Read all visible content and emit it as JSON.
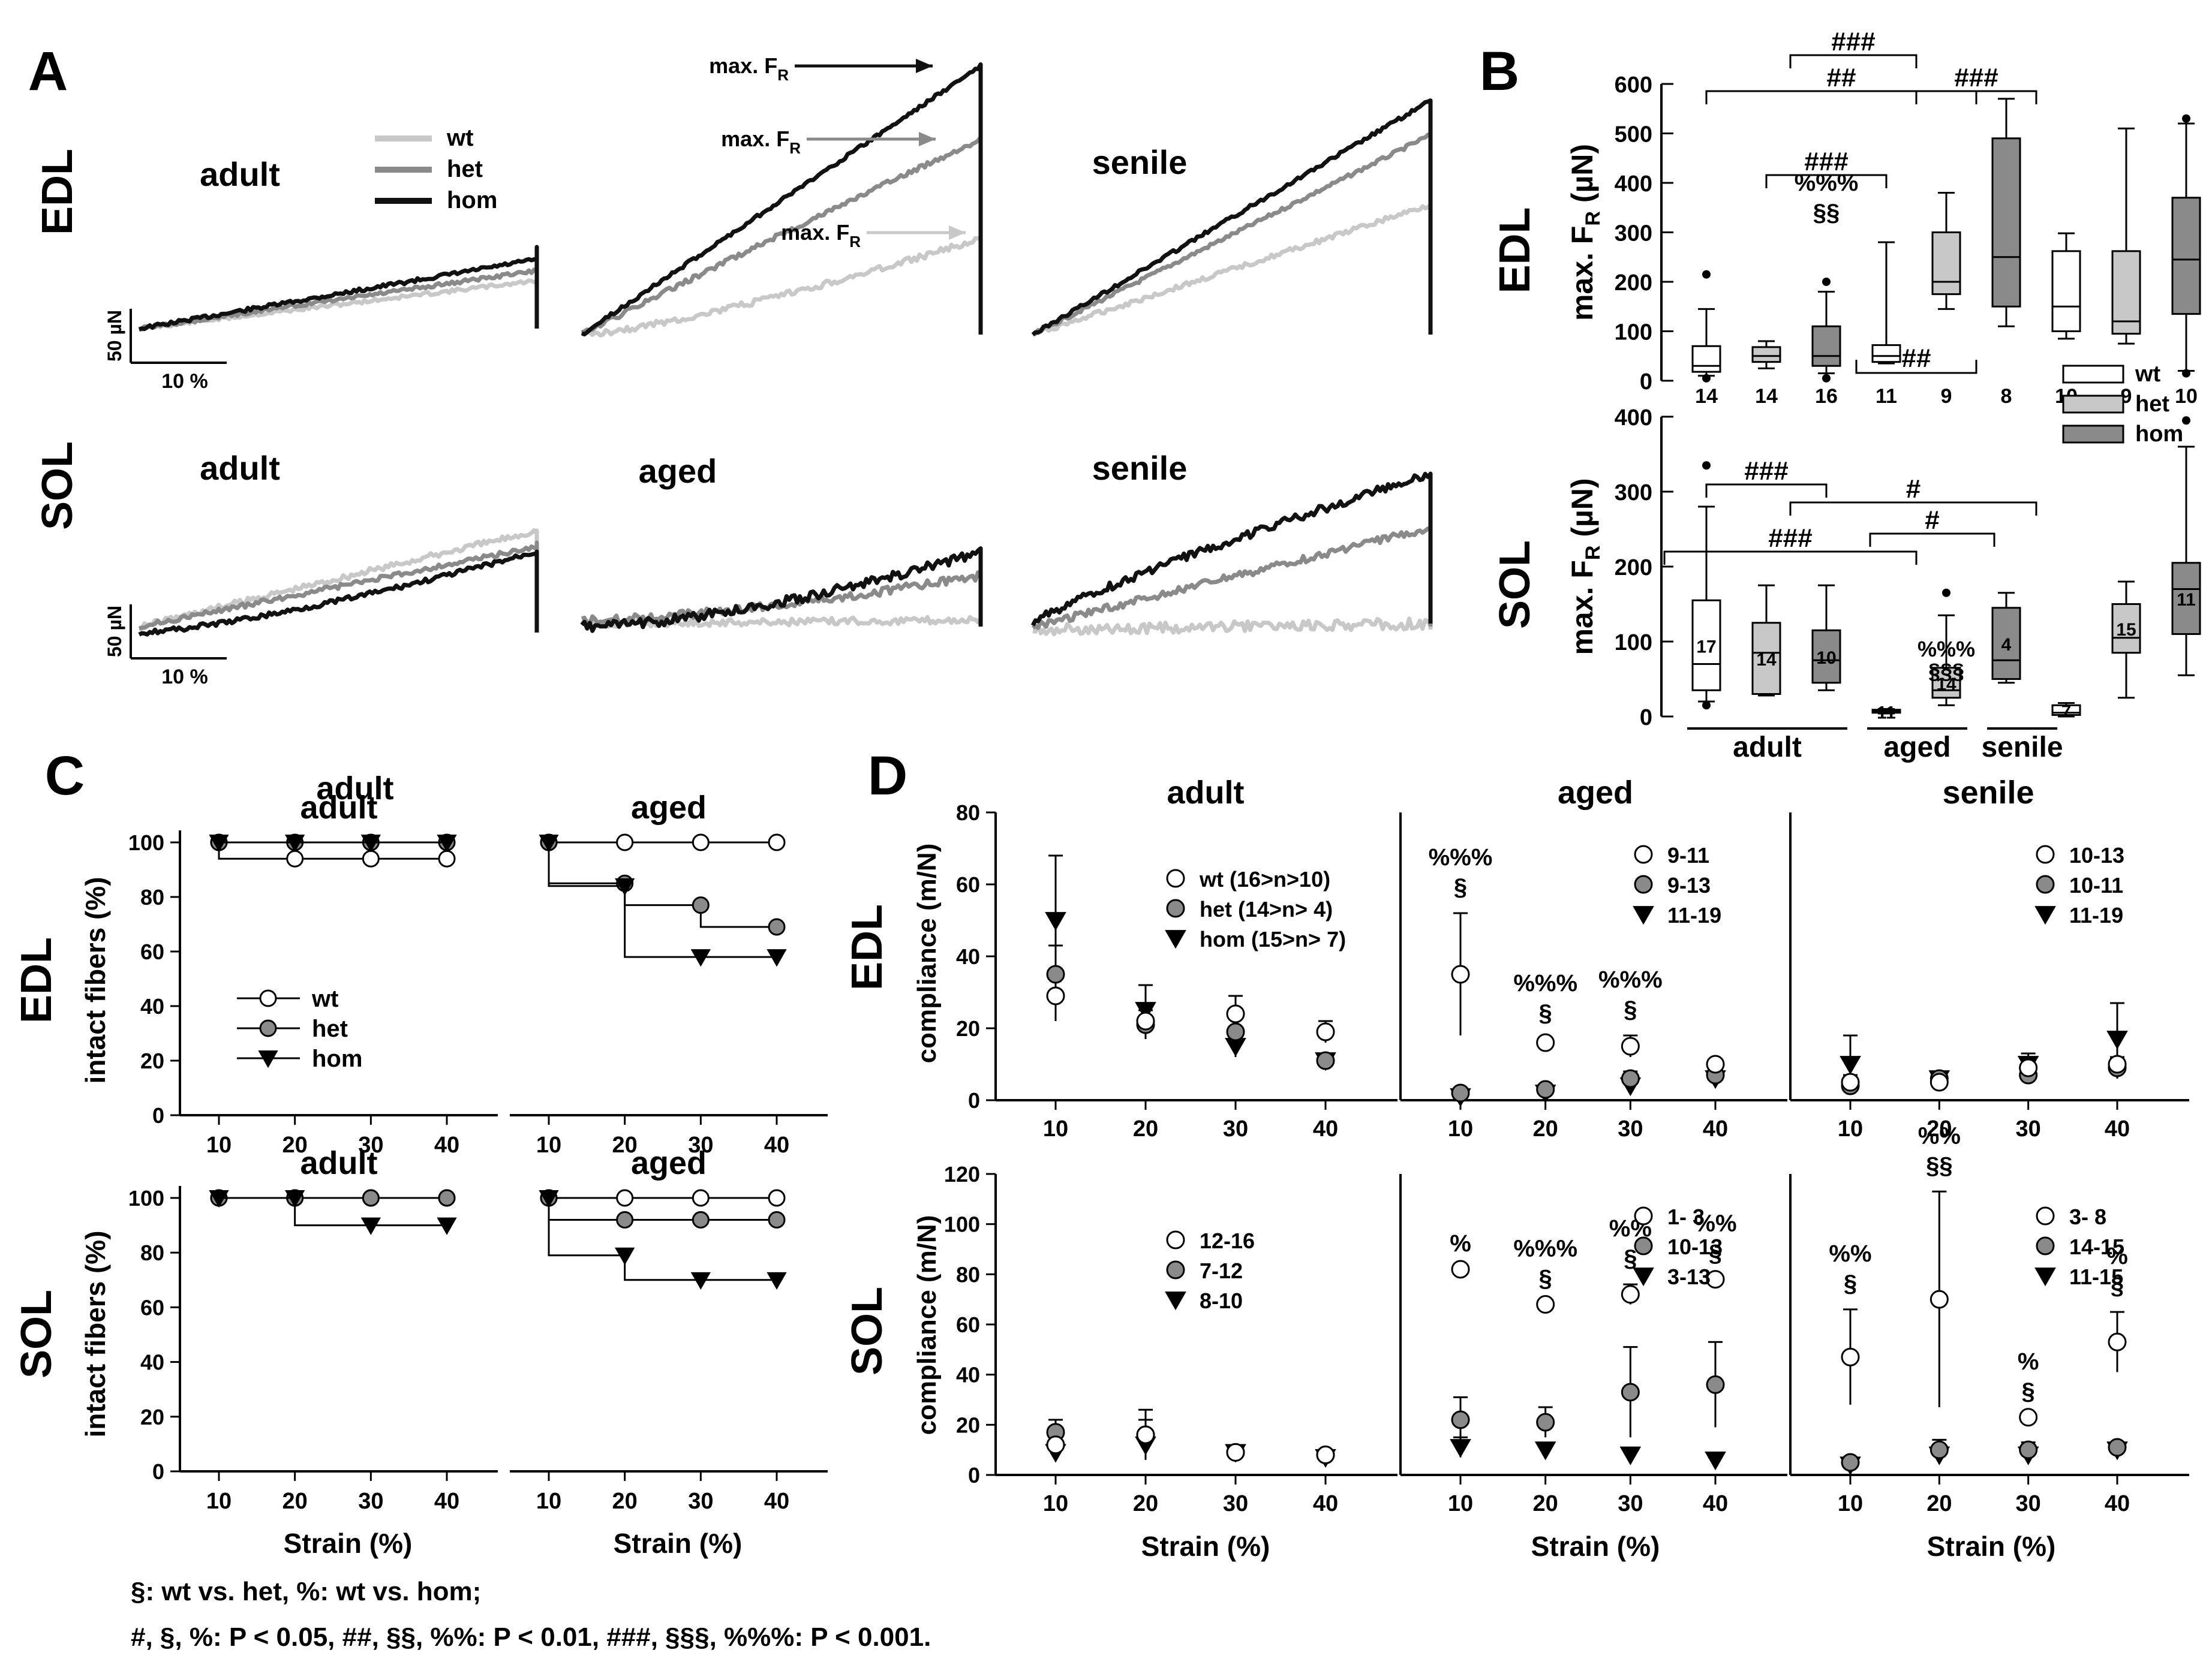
{
  "panels": {
    "A": "A",
    "B": "B",
    "C": "C",
    "D": "D"
  },
  "muscles": {
    "edl": "EDL",
    "sol": "SOL"
  },
  "groups": {
    "adult": "adult",
    "aged": "aged",
    "senile": "senile"
  },
  "genotypes": {
    "wt": "wt",
    "het": "het",
    "hom": "hom"
  },
  "colors": {
    "wt": "#c8c8c8",
    "het": "#8a8a8a",
    "hom": "#111111",
    "wt_fill": "#ffffff",
    "het_fill": "#c8c8c8",
    "hom_fill": "#8a8a8a"
  },
  "panel_a": {
    "scale_force": "50 µN",
    "scale_strain": "10 %",
    "max_fr_label": "max. F",
    "max_fr_sub": "R"
  },
  "footer": {
    "line1": "§: wt vs. het, %: wt vs. hom;",
    "line2": "#, §, %:  P < 0.05, ##, §§, %%: P < 0.01, ###, §§§, %%%: P < 0.001."
  },
  "chart_data": [
    {
      "id": "B-EDL",
      "type": "boxplot",
      "title": "EDL",
      "ylabel": "max. F",
      "ylabel_sub": "R",
      "ylabel_unit": "(µN)",
      "ylim": [
        0,
        600
      ],
      "yticks": [
        0,
        100,
        200,
        300,
        400,
        500,
        600
      ],
      "boxes": [
        {
          "group": "adult",
          "genotype": "wt",
          "n": "14",
          "wlo": 10,
          "q1": 18,
          "med": 30,
          "q3": 70,
          "whi": 145,
          "out": [
            215,
            5
          ]
        },
        {
          "group": "adult",
          "genotype": "het",
          "n": "14",
          "wlo": 25,
          "q1": 38,
          "med": 50,
          "q3": 68,
          "whi": 80,
          "out": []
        },
        {
          "group": "adult",
          "genotype": "hom",
          "n": "16",
          "wlo": 15,
          "q1": 30,
          "med": 50,
          "q3": 110,
          "whi": 180,
          "out": [
            200,
            5
          ]
        },
        {
          "group": "aged",
          "genotype": "wt",
          "n": "11",
          "wlo": 35,
          "q1": 38,
          "med": 50,
          "q3": 72,
          "whi": 280,
          "out": []
        },
        {
          "group": "aged",
          "genotype": "het",
          "n": "9",
          "wlo": 145,
          "q1": 175,
          "med": 200,
          "q3": 300,
          "whi": 380,
          "out": []
        },
        {
          "group": "aged",
          "genotype": "hom",
          "n": "8",
          "wlo": 110,
          "q1": 150,
          "med": 250,
          "q3": 490,
          "whi": 570,
          "out": []
        },
        {
          "group": "senile",
          "genotype": "wt",
          "n": "10",
          "wlo": 85,
          "q1": 100,
          "med": 150,
          "q3": 262,
          "whi": 298,
          "out": []
        },
        {
          "group": "senile",
          "genotype": "het",
          "n": "9",
          "wlo": 75,
          "q1": 95,
          "med": 120,
          "q3": 262,
          "whi": 510,
          "out": []
        },
        {
          "group": "senile",
          "genotype": "hom",
          "n": "10",
          "wlo": 20,
          "q1": 135,
          "med": 245,
          "q3": 370,
          "whi": 520,
          "out": [
            530,
            15
          ]
        }
      ],
      "annotations": [
        "###",
        "##",
        "###",
        "###",
        "%%%",
        "§§",
        "##"
      ]
    },
    {
      "id": "B-SOL",
      "type": "boxplot",
      "title": "SOL",
      "ylabel": "max. F",
      "ylabel_sub": "R",
      "ylabel_unit": "(µN)",
      "ylim": [
        0,
        400
      ],
      "yticks": [
        0,
        100,
        200,
        300,
        400
      ],
      "boxes": [
        {
          "group": "adult",
          "genotype": "wt",
          "n": "17",
          "wlo": 20,
          "q1": 35,
          "med": 70,
          "q3": 155,
          "whi": 280,
          "out": [
            335,
            15
          ]
        },
        {
          "group": "adult",
          "genotype": "het",
          "n": "14",
          "wlo": 28,
          "q1": 30,
          "med": 85,
          "q3": 125,
          "whi": 175,
          "out": []
        },
        {
          "group": "adult",
          "genotype": "hom",
          "n": "10",
          "wlo": 35,
          "q1": 45,
          "med": 75,
          "q3": 115,
          "whi": 175,
          "out": []
        },
        {
          "group": "aged",
          "genotype": "wt",
          "n": "11",
          "wlo": 4,
          "q1": 5,
          "med": 7,
          "q3": 9,
          "whi": 10,
          "out": []
        },
        {
          "group": "aged",
          "genotype": "het",
          "n": "14",
          "wlo": 15,
          "q1": 25,
          "med": 35,
          "q3": 65,
          "whi": 135,
          "out": [
            165
          ]
        },
        {
          "group": "aged",
          "genotype": "hom",
          "n": "4",
          "wlo": 45,
          "q1": 50,
          "med": 75,
          "q3": 145,
          "whi": 165,
          "out": []
        },
        {
          "group": "senile",
          "genotype": "wt",
          "n": "7",
          "wlo": 0,
          "q1": 2,
          "med": 5,
          "q3": 15,
          "whi": 18,
          "out": []
        },
        {
          "group": "senile",
          "genotype": "het",
          "n": "15",
          "wlo": 25,
          "q1": 85,
          "med": 105,
          "q3": 150,
          "whi": 180,
          "out": []
        },
        {
          "group": "senile",
          "genotype": "hom",
          "n": "11",
          "wlo": 55,
          "q1": 110,
          "med": 170,
          "q3": 205,
          "whi": 360,
          "out": [
            395
          ]
        }
      ],
      "annotations": [
        "###",
        "#",
        "###",
        "#",
        "%%%",
        "§§§"
      ]
    },
    {
      "id": "C",
      "type": "step-line",
      "ylabel": "intact fibers (%)",
      "xlabel": "Strain (%)",
      "x": [
        10,
        20,
        30,
        40
      ],
      "ylim": [
        0,
        100
      ],
      "yticks": [
        0,
        20,
        40,
        60,
        80,
        100
      ],
      "subplots": [
        {
          "muscle": "EDL",
          "group": "adult",
          "series": [
            {
              "name": "wt",
              "values": [
                100,
                94,
                94,
                94
              ]
            },
            {
              "name": "het",
              "values": [
                100,
                100,
                100,
                100
              ]
            },
            {
              "name": "hom",
              "values": [
                100,
                100,
                100,
                100
              ]
            }
          ]
        },
        {
          "muscle": "EDL",
          "group": "aged",
          "series": [
            {
              "name": "wt",
              "values": [
                100,
                100,
                100,
                100
              ]
            },
            {
              "name": "het",
              "values": [
                100,
                85,
                77,
                69
              ]
            },
            {
              "name": "hom",
              "values": [
                100,
                84,
                58,
                58
              ]
            }
          ]
        },
        {
          "muscle": "SOL",
          "group": "adult",
          "series": [
            {
              "name": "wt",
              "values": [
                100,
                100,
                100,
                100
              ]
            },
            {
              "name": "het",
              "values": [
                100,
                100,
                100,
                100
              ]
            },
            {
              "name": "hom",
              "values": [
                100,
                100,
                90,
                90
              ]
            }
          ]
        },
        {
          "muscle": "SOL",
          "group": "aged",
          "series": [
            {
              "name": "wt",
              "values": [
                100,
                100,
                100,
                100
              ]
            },
            {
              "name": "het",
              "values": [
                100,
                92,
                92,
                92
              ]
            },
            {
              "name": "hom",
              "values": [
                100,
                79,
                70,
                70
              ]
            }
          ]
        }
      ]
    },
    {
      "id": "D",
      "type": "scatter-errorbar",
      "ylabel": "compliance (m/N)",
      "xlabel": "Strain (%)",
      "x": [
        10,
        20,
        30,
        40
      ],
      "subplots": [
        {
          "muscle": "EDL",
          "group": "adult",
          "ylim": [
            0,
            80
          ],
          "yticks": [
            0,
            20,
            40,
            60,
            80
          ],
          "legend": [
            "wt    (16>n>10)",
            "het   (14>n>  4)",
            "hom (15>n>  7)"
          ],
          "series": [
            {
              "name": "wt",
              "values": [
                29,
                22,
                24,
                19
              ],
              "err": [
                7,
                5,
                5,
                3
              ]
            },
            {
              "name": "het",
              "values": [
                35,
                21,
                19,
                11
              ],
              "err": [
                8,
                4,
                4,
                1
              ]
            },
            {
              "name": "hom",
              "values": [
                50,
                25,
                15,
                11
              ],
              "err": [
                18,
                7,
                3,
                1
              ]
            }
          ],
          "annotations": []
        },
        {
          "muscle": "EDL",
          "group": "aged",
          "ylim": [
            0,
            80
          ],
          "yticks": [],
          "legend": [
            "9-11",
            "9-13",
            "11-19"
          ],
          "series": [
            {
              "name": "wt",
              "values": [
                35,
                16,
                15,
                10
              ],
              "err": [
                17,
                1,
                3,
                1
              ]
            },
            {
              "name": "het",
              "values": [
                2,
                3,
                6,
                7
              ],
              "err": [
                1,
                1,
                2,
                1
              ]
            },
            {
              "name": "hom",
              "values": [
                1,
                2,
                4,
                6
              ],
              "err": [
                1,
                1,
                1,
                1
              ]
            }
          ],
          "annotations": [
            {
              "x": 10,
              "lines": [
                "%%%",
                "§"
              ]
            },
            {
              "x": 20,
              "lines": [
                "%%%",
                "§"
              ]
            },
            {
              "x": 30,
              "lines": [
                "%%%",
                "§"
              ]
            }
          ]
        },
        {
          "muscle": "EDL",
          "group": "senile",
          "ylim": [
            0,
            80
          ],
          "yticks": [],
          "legend": [
            "10-13",
            "10-11",
            "11-19"
          ],
          "series": [
            {
              "name": "wt",
              "values": [
                5,
                5,
                9,
                10
              ],
              "err": [
                2,
                2,
                2,
                2
              ]
            },
            {
              "name": "het",
              "values": [
                4,
                6,
                7,
                9
              ],
              "err": [
                2,
                2,
                2,
                3
              ]
            },
            {
              "name": "hom",
              "values": [
                10,
                6,
                10,
                17
              ],
              "err": [
                8,
                2,
                3,
                10
              ]
            }
          ],
          "annotations": []
        },
        {
          "muscle": "SOL",
          "group": "adult",
          "ylim": [
            0,
            120
          ],
          "yticks": [
            0,
            20,
            40,
            60,
            80,
            100,
            120
          ],
          "legend": [
            "12-16",
            "7-12",
            "8-10"
          ],
          "series": [
            {
              "name": "wt",
              "values": [
                12,
                16,
                9,
                8
              ],
              "err": [
                4,
                6,
                2,
                2
              ]
            },
            {
              "name": "het",
              "values": [
                17,
                16,
                9,
                8
              ],
              "err": [
                5,
                10,
                2,
                2
              ]
            },
            {
              "name": "hom",
              "values": [
                9,
                12,
                9,
                7
              ],
              "err": [
                3,
                5,
                2,
                2
              ]
            }
          ],
          "annotations": []
        },
        {
          "muscle": "SOL",
          "group": "aged",
          "ylim": [
            0,
            120
          ],
          "yticks": [],
          "legend": [
            "1- 3",
            "10-13",
            "3-13"
          ],
          "series": [
            {
              "name": "wt",
              "values": [
                82,
                68,
                72,
                78
              ],
              "err": [
                0,
                0,
                4,
                0
              ]
            },
            {
              "name": "het",
              "values": [
                22,
                21,
                33,
                36
              ],
              "err": [
                9,
                6,
                18,
                17
              ]
            },
            {
              "name": "hom",
              "values": [
                11,
                10,
                8,
                6
              ],
              "err": [
                4,
                2,
                2,
                1
              ]
            }
          ],
          "annotations": [
            {
              "x": 10,
              "lines": [
                "%"
              ]
            },
            {
              "x": 20,
              "lines": [
                "%%%",
                "§"
              ]
            },
            {
              "x": 30,
              "lines": [
                "%%",
                "§"
              ]
            },
            {
              "x": 40,
              "lines": [
                "%%",
                "§"
              ]
            }
          ]
        },
        {
          "muscle": "SOL",
          "group": "senile",
          "ylim": [
            0,
            120
          ],
          "yticks": [],
          "legend": [
            "3- 8",
            "14-15",
            "11-15"
          ],
          "series": [
            {
              "name": "wt",
              "values": [
                47,
                70,
                23,
                53
              ],
              "err": [
                19,
                43,
                0,
                12
              ]
            },
            {
              "name": "het",
              "values": [
                5,
                10,
                10,
                11
              ],
              "err": [
                2,
                4,
                3,
                2
              ]
            },
            {
              "name": "hom",
              "values": [
                4,
                8,
                8,
                10
              ],
              "err": [
                2,
                3,
                2,
                2
              ]
            }
          ],
          "annotations": [
            {
              "x": 10,
              "lines": [
                "%%",
                "§"
              ]
            },
            {
              "x": 20,
              "lines": [
                "%%",
                "§§"
              ]
            },
            {
              "x": 30,
              "lines": [
                "%",
                "§"
              ]
            },
            {
              "x": 40,
              "lines": [
                "%",
                "§"
              ]
            }
          ]
        }
      ]
    }
  ]
}
